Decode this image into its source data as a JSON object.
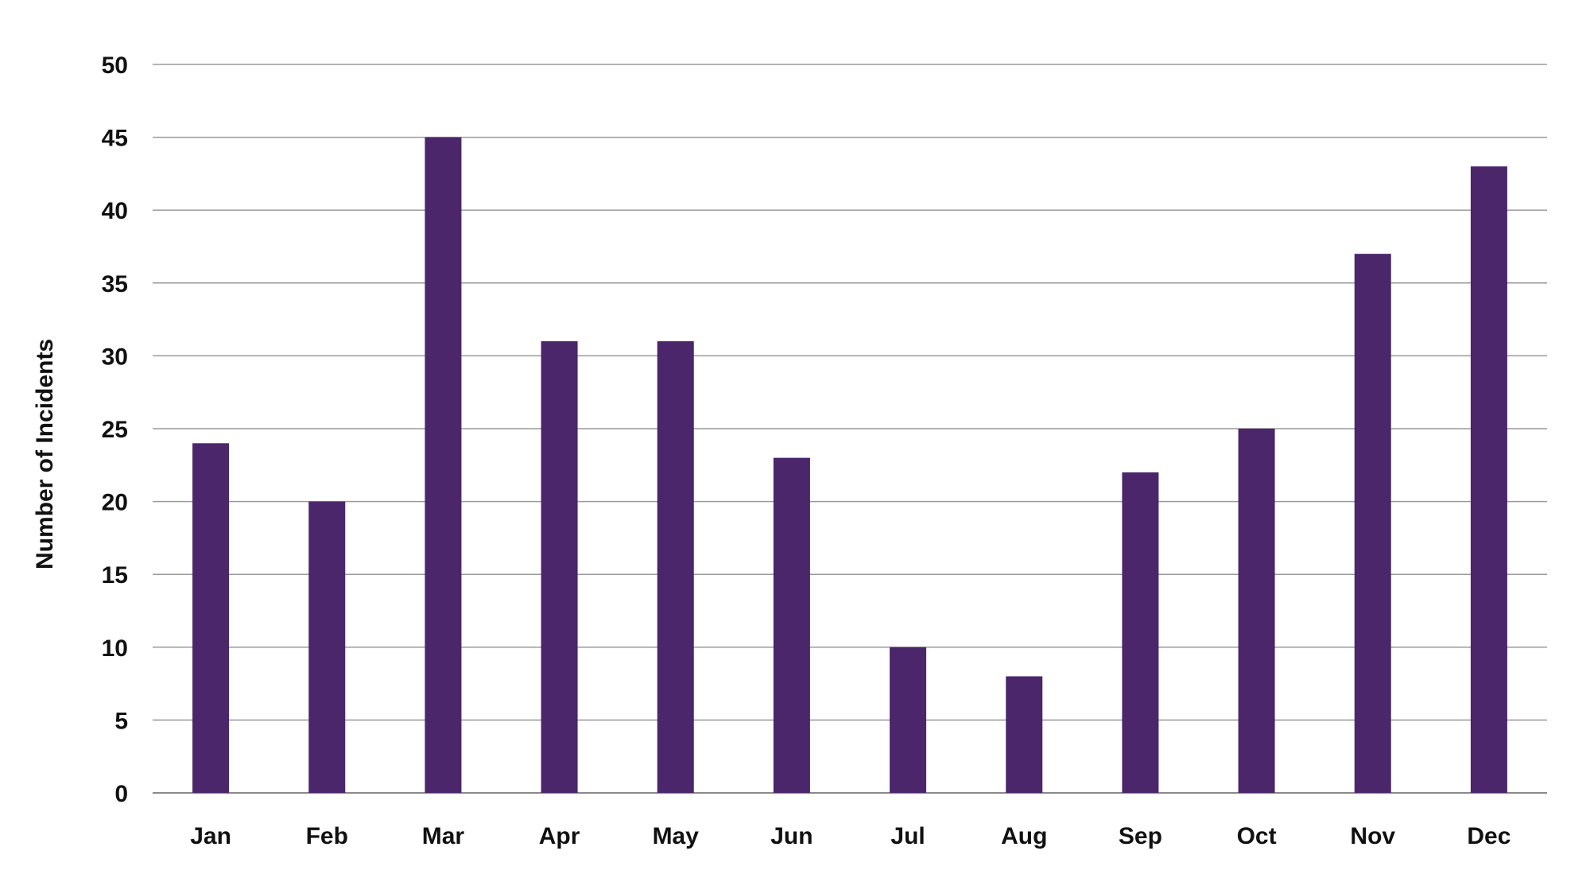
{
  "chart_data": {
    "type": "bar",
    "categories": [
      "Jan",
      "Feb",
      "Mar",
      "Apr",
      "May",
      "Jun",
      "Jul",
      "Aug",
      "Sep",
      "Oct",
      "Nov",
      "Dec"
    ],
    "values": [
      24,
      20,
      45,
      31,
      31,
      23,
      10,
      8,
      22,
      25,
      37,
      43
    ],
    "ylabel": "Number of Incidents",
    "ylim": [
      0,
      50
    ],
    "yticks": [
      "0",
      "5",
      "10",
      "15",
      "20",
      "25",
      "30",
      "35",
      "40",
      "45",
      "50"
    ],
    "grid": true,
    "legend": "none",
    "colors": {
      "bar": "#4b266b",
      "grid": "#9a9a9a",
      "text": "#111111"
    }
  }
}
